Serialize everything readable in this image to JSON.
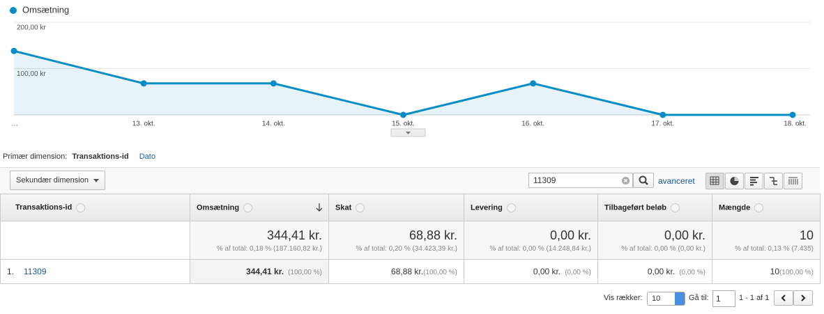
{
  "chart_data": {
    "type": "line",
    "categories": [
      "…",
      "13. okt.",
      "14. okt.",
      "15. okt.",
      "16. okt.",
      "17. okt.",
      "18. okt."
    ],
    "series": [
      {
        "name": "Omsætning",
        "color": "#058dc7",
        "values": [
          138,
          68,
          68,
          0,
          68,
          0,
          0
        ]
      }
    ],
    "ylim": [
      0,
      200
    ],
    "yticks": [
      {
        "value": 100,
        "label": "100,00 kr"
      },
      {
        "value": 200,
        "label": "200,00 kr"
      }
    ],
    "grid": true
  },
  "dimension": {
    "label": "Primær dimension:",
    "selected": "Transaktions-id",
    "other": "Dato"
  },
  "toolbar": {
    "secondary": "Sekundær dimension",
    "search": "11309",
    "advanced": "avanceret"
  },
  "table": {
    "columns": [
      "Transaktions-id",
      "Omsætning",
      "Skat",
      "Levering",
      "Tilbageført beløb",
      "Mængde"
    ],
    "totals": [
      {
        "value": "344,41 kr.",
        "share": "% af total: 0,18 % (187.160,82 kr.)"
      },
      {
        "value": "68,88 kr.",
        "share": "% af total: 0,20 % (34.423,39 kr.)"
      },
      {
        "value": "0,00 kr.",
        "share": "% af total: 0,00 % (14.248,84 kr.)"
      },
      {
        "value": "0,00 kr.",
        "share": "% af total: 0,00 % (0,00 kr.)"
      },
      {
        "value": "10",
        "share": "% af total: 0,13 % (7.435)"
      }
    ],
    "rows": [
      {
        "index": "1.",
        "id": "11309",
        "cells": [
          {
            "value": "344,41 kr.",
            "share": "(100,00 %)"
          },
          {
            "value": "68,88 kr.",
            "share": "(100,00 %)"
          },
          {
            "value": "0,00 kr.",
            "share": "(0,00 %)"
          },
          {
            "value": "0,00 kr.",
            "share": "(0,00 %)"
          },
          {
            "value": "10",
            "share": "(100,00 %)"
          }
        ]
      }
    ]
  },
  "pagination": {
    "rows_label": "Vis rækker:",
    "rows": "10",
    "goto_label": "Gå til:",
    "page": "1",
    "range": "1 - 1 af 1"
  }
}
